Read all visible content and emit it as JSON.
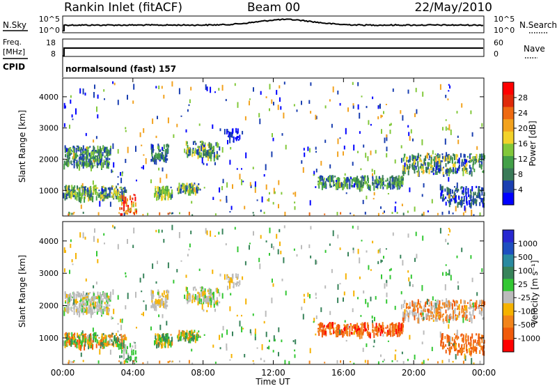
{
  "header": {
    "station": "Rankin Inlet (fitACF)",
    "beam": "Beam 00",
    "date": "22/May/2010"
  },
  "strips": {
    "nsky_label": "N.Sky",
    "nsky_ticks": [
      "10^5",
      "10^0"
    ],
    "nsearch_label": "N.Search",
    "freq_label": "Freq.",
    "freq_unit": "[MHz]",
    "freq_ticks": [
      "18",
      "8"
    ],
    "nave_label": "Nave",
    "nave_ticks": [
      "60",
      "0"
    ],
    "cpid_label": "CPID",
    "cpid_text": "normalsound (fast) 157"
  },
  "colors": {
    "power": [
      "#0000ff",
      "#1a3fb0",
      "#3a7a58",
      "#43a048",
      "#82c83a",
      "#f2d22a",
      "#f2a21e",
      "#ee6a12",
      "#e02a0a",
      "#ff0000"
    ],
    "velocity": [
      "#ff0000",
      "#f05a0a",
      "#f2841a",
      "#f5b200",
      "#bbbbbb",
      "#33c733",
      "#37835a",
      "#2a8aa0",
      "#1e4fc0",
      "#2828d0"
    ]
  },
  "chart_data": [
    {
      "type": "heatmap",
      "name": "power",
      "ylabel": "Slant Range [km]",
      "ylim": [
        180,
        4600
      ],
      "yticks": [
        "1000",
        "2000",
        "3000",
        "4000"
      ],
      "xlim": [
        0,
        24
      ],
      "colorbar_label": "Power [dB]",
      "colorbar_ticks": [
        "4",
        "8",
        "12",
        "16",
        "20",
        "24",
        "28"
      ],
      "clim": [
        0,
        30
      ]
    },
    {
      "type": "heatmap",
      "name": "velocity",
      "xlabel": "Time UT",
      "ylabel": "Slant Range [km]",
      "ylim": [
        180,
        4600
      ],
      "yticks": [
        "1000",
        "2000",
        "3000",
        "4000"
      ],
      "xlim": [
        0,
        24
      ],
      "xticks": [
        "00:00",
        "04:00",
        "08:00",
        "12:00",
        "16:00",
        "20:00",
        "00:00"
      ],
      "colorbar_label": "Velocity [m s⁻¹]",
      "colorbar_ticks": [
        "1000",
        "500",
        "100",
        "25",
        "-25",
        "-100",
        "-500",
        "-1000"
      ]
    }
  ]
}
